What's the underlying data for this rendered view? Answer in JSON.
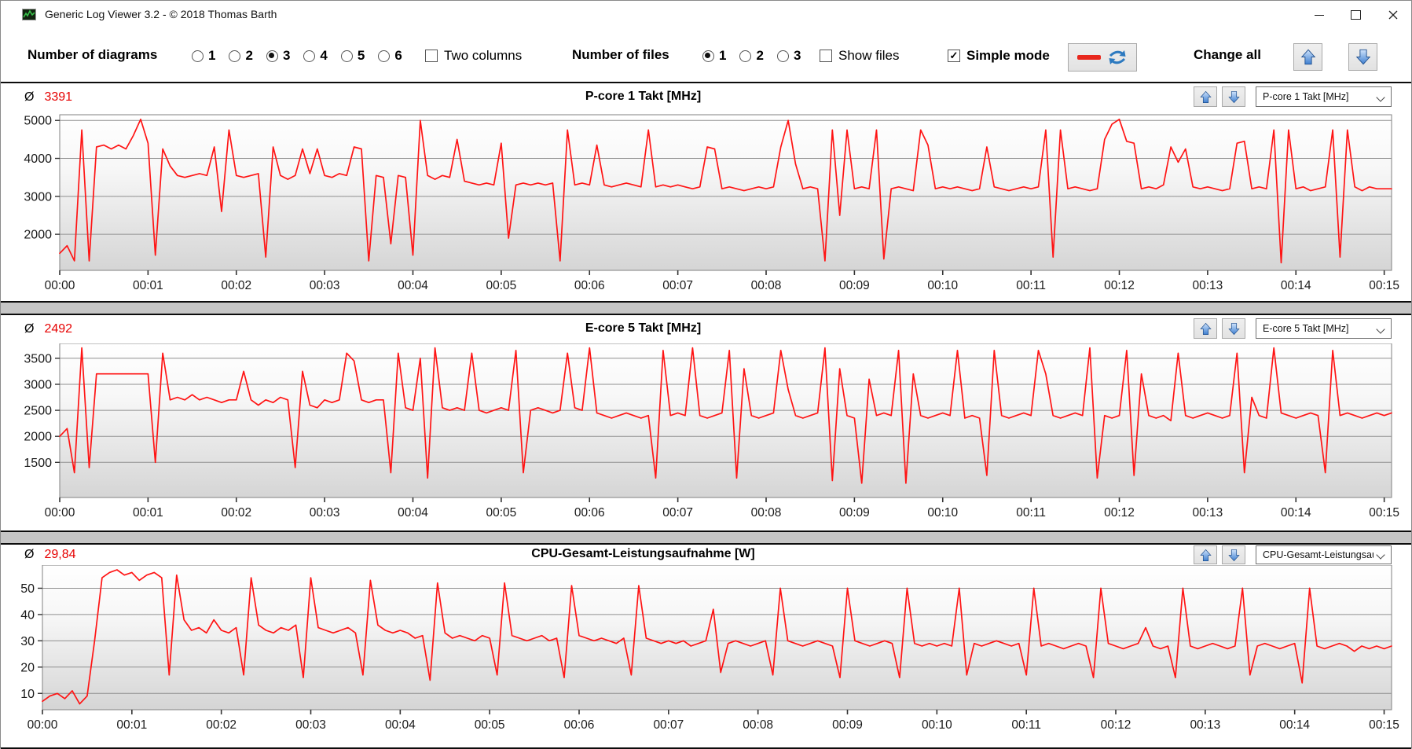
{
  "titlebar": {
    "title": "Generic Log Viewer 3.2 - © 2018 Thomas Barth"
  },
  "icons": {
    "app_icon": "green-chart-icon",
    "minimize_icon": "–",
    "maximize_icon": "□",
    "close_icon": "✕",
    "average_symbol": "Ø",
    "up_arrow_icon": "⬆",
    "down_arrow_icon": "⬇",
    "refresh_icon": "⇄",
    "red_line_icon": "—",
    "chevron_down_icon": "∨"
  },
  "toolbar": {
    "diagrams_label": "Number of diagrams",
    "diagram_options": [
      "1",
      "2",
      "3",
      "4",
      "5",
      "6"
    ],
    "diagrams_selected": "3",
    "two_columns_label": "Two columns",
    "two_columns_checked": false,
    "files_label": "Number of files",
    "file_options": [
      "1",
      "2",
      "3"
    ],
    "files_selected": "1",
    "show_files_label": "Show files",
    "show_files_checked": false,
    "simple_mode_label": "Simple mode",
    "simple_mode_checked": true,
    "change_all_label": "Change all",
    "accent_red": "#e8281e",
    "accent_blue": "#3e7fd0"
  },
  "chart_data": [
    {
      "type": "line",
      "title": "P-core 1 Takt [MHz]",
      "avg": "3391",
      "dropdown": "P-core 1 Takt [MHz]",
      "line_color": "#ff1414",
      "y_domain": [
        1050,
        5150
      ],
      "y_ticks": [
        2000,
        3000,
        4000,
        5000
      ],
      "x_tick_labels": [
        "00:00",
        "00:01",
        "00:02",
        "00:03",
        "00:04",
        "00:05",
        "00:06",
        "00:07",
        "00:08",
        "00:09",
        "00:10",
        "00:11",
        "00:12",
        "00:13",
        "00:14",
        "00:15"
      ],
      "x_domain_seconds": [
        0,
        905
      ],
      "sample_step_seconds": 5,
      "values": [
        1500,
        1700,
        1300,
        4750,
        1300,
        4300,
        4350,
        4250,
        4350,
        4250,
        4600,
        5030,
        4400,
        1450,
        4250,
        3800,
        3550,
        3500,
        3550,
        3600,
        3550,
        4300,
        2600,
        4750,
        3550,
        3500,
        3550,
        3600,
        1400,
        4300,
        3550,
        3450,
        3550,
        4250,
        3600,
        4250,
        3550,
        3500,
        3600,
        3550,
        4300,
        4250,
        1300,
        3550,
        3500,
        1750,
        3550,
        3500,
        1450,
        5000,
        3550,
        3450,
        3550,
        3500,
        4500,
        3400,
        3350,
        3300,
        3350,
        3300,
        4400,
        1900,
        3300,
        3350,
        3300,
        3350,
        3300,
        3350,
        1300,
        4750,
        3300,
        3350,
        3300,
        4350,
        3300,
        3250,
        3300,
        3350,
        3300,
        3250,
        4750,
        3250,
        3300,
        3250,
        3300,
        3250,
        3200,
        3250,
        4300,
        4250,
        3200,
        3250,
        3200,
        3150,
        3200,
        3250,
        3200,
        3250,
        4300,
        5000,
        3850,
        3200,
        3250,
        3200,
        1300,
        4750,
        2500,
        4750,
        3200,
        3250,
        3200,
        4750,
        1350,
        3200,
        3250,
        3200,
        3150,
        4750,
        4350,
        3200,
        3250,
        3200,
        3250,
        3200,
        3150,
        3200,
        4300,
        3250,
        3200,
        3150,
        3200,
        3250,
        3200,
        3250,
        4750,
        1400,
        4750,
        3200,
        3250,
        3200,
        3150,
        3200,
        4500,
        4900,
        5030,
        4450,
        4400,
        3200,
        3250,
        3200,
        3300,
        4300,
        3900,
        4250,
        3250,
        3200,
        3250,
        3200,
        3150,
        3200,
        4400,
        4450,
        3200,
        3250,
        3200,
        4750,
        1250,
        4750,
        3200,
        3250,
        3150,
        3200,
        3250,
        4750,
        1400,
        4750,
        3250,
        3150,
        3250,
        3200,
        3200,
        3200
      ]
    },
    {
      "type": "line",
      "title": "E-core 5 Takt [MHz]",
      "avg": "2492",
      "dropdown": "E-core 5 Takt [MHz]",
      "line_color": "#ff1414",
      "y_domain": [
        825,
        3785
      ],
      "y_ticks": [
        1500,
        2000,
        2500,
        3000,
        3500
      ],
      "x_tick_labels": [
        "00:00",
        "00:01",
        "00:02",
        "00:03",
        "00:04",
        "00:05",
        "00:06",
        "00:07",
        "00:08",
        "00:09",
        "00:10",
        "00:11",
        "00:12",
        "00:13",
        "00:14",
        "00:15"
      ],
      "x_domain_seconds": [
        0,
        905
      ],
      "sample_step_seconds": 5,
      "values": [
        2000,
        2150,
        1300,
        3700,
        1400,
        3200,
        3200,
        3200,
        3200,
        3200,
        3200,
        3200,
        3200,
        1500,
        3600,
        2700,
        2750,
        2700,
        2800,
        2700,
        2750,
        2700,
        2650,
        2700,
        2700,
        3250,
        2700,
        2600,
        2700,
        2650,
        2750,
        2700,
        1400,
        3250,
        2600,
        2550,
        2700,
        2650,
        2700,
        3600,
        3450,
        2700,
        2650,
        2700,
        2700,
        1300,
        3600,
        2550,
        2500,
        3500,
        1200,
        3700,
        2550,
        2500,
        2550,
        2500,
        3600,
        2500,
        2450,
        2500,
        2550,
        2500,
        3650,
        1300,
        2500,
        2550,
        2500,
        2450,
        2500,
        3600,
        2550,
        2500,
        3700,
        2450,
        2400,
        2350,
        2400,
        2450,
        2400,
        2350,
        2400,
        1200,
        3650,
        2400,
        2450,
        2400,
        3700,
        2400,
        2350,
        2400,
        2450,
        3650,
        1200,
        3300,
        2400,
        2350,
        2400,
        2450,
        3650,
        2900,
        2400,
        2350,
        2400,
        2450,
        3700,
        1150,
        3300,
        2400,
        2350,
        1100,
        3100,
        2400,
        2450,
        2400,
        3650,
        1100,
        3200,
        2400,
        2350,
        2400,
        2450,
        2400,
        3650,
        2350,
        2400,
        2350,
        1250,
        3650,
        2400,
        2350,
        2400,
        2450,
        2400,
        3650,
        3200,
        2400,
        2350,
        2400,
        2450,
        2400,
        3700,
        1200,
        2400,
        2350,
        2400,
        3650,
        1250,
        3200,
        2400,
        2350,
        2400,
        2300,
        3600,
        2400,
        2350,
        2400,
        2450,
        2400,
        2350,
        2400,
        3600,
        1300,
        2750,
        2400,
        2350,
        3700,
        2450,
        2400,
        2350,
        2400,
        2450,
        2400,
        1300,
        3650,
        2400,
        2450,
        2400,
        2350,
        2400,
        2450,
        2400,
        2450
      ]
    },
    {
      "type": "line",
      "title": "CPU-Gesamt-Leistungsaufnahme [W]",
      "avg": "29,84",
      "dropdown": "CPU-Gesamt-Leistungsau",
      "line_color": "#ff1414",
      "y_domain": [
        3.8,
        58.8
      ],
      "y_ticks": [
        10,
        20,
        30,
        40,
        50
      ],
      "x_tick_labels": [
        "00:00",
        "00:01",
        "00:02",
        "00:03",
        "00:04",
        "00:05",
        "00:06",
        "00:07",
        "00:08",
        "00:09",
        "00:10",
        "00:11",
        "00:12",
        "00:13",
        "00:14",
        "00:15"
      ],
      "x_domain_seconds": [
        0,
        905
      ],
      "sample_step_seconds": 5,
      "values": [
        7,
        9,
        10,
        8,
        11,
        6,
        9,
        30,
        54,
        56,
        57,
        55,
        56,
        53,
        55,
        56,
        54,
        17,
        55,
        38,
        34,
        35,
        33,
        38,
        34,
        33,
        35,
        17,
        54,
        36,
        34,
        33,
        35,
        34,
        36,
        16,
        54,
        35,
        34,
        33,
        34,
        35,
        33,
        17,
        53,
        36,
        34,
        33,
        34,
        33,
        31,
        32,
        15,
        52,
        33,
        31,
        32,
        31,
        30,
        32,
        31,
        17,
        52,
        32,
        31,
        30,
        31,
        32,
        30,
        31,
        16,
        51,
        32,
        31,
        30,
        31,
        30,
        29,
        31,
        17,
        51,
        31,
        30,
        29,
        30,
        29,
        30,
        28,
        29,
        30,
        42,
        18,
        29,
        30,
        29,
        28,
        29,
        30,
        17,
        50,
        30,
        29,
        28,
        29,
        30,
        29,
        28,
        16,
        50,
        30,
        29,
        28,
        29,
        30,
        29,
        16,
        50,
        29,
        28,
        29,
        28,
        29,
        28,
        50,
        17,
        29,
        28,
        29,
        30,
        29,
        28,
        29,
        17,
        50,
        28,
        29,
        28,
        27,
        28,
        29,
        28,
        16,
        50,
        29,
        28,
        27,
        28,
        29,
        35,
        28,
        27,
        28,
        16,
        50,
        28,
        27,
        28,
        29,
        28,
        27,
        28,
        50,
        17,
        28,
        29,
        28,
        27,
        28,
        29,
        14,
        50,
        28,
        27,
        28,
        29,
        28,
        26,
        28,
        27,
        28,
        27,
        28
      ]
    }
  ]
}
